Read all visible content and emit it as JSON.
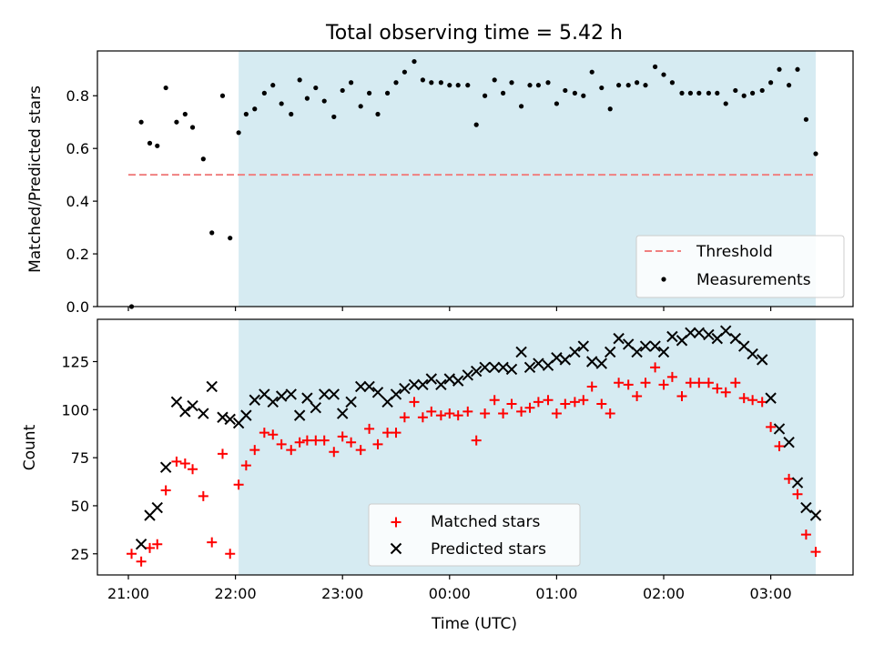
{
  "chart_data": [
    {
      "type": "scatter",
      "title": "Total observing time = 5.42 h",
      "xlabel": "",
      "ylabel": "Matched/Predicted stars",
      "ylim": [
        0,
        0.97
      ],
      "yticks": [
        "0.0",
        "0.2",
        "0.4",
        "0.6",
        "0.8"
      ],
      "threshold": {
        "name": "Threshold",
        "value": 0.5,
        "x_start": 0.0,
        "x_end": 6.42,
        "color": "#f08080",
        "style": "dashed"
      },
      "legend_position": "lower right",
      "series": [
        {
          "name": "Measurements",
          "color": "#000000",
          "x": [
            0.03,
            0.12,
            0.2,
            0.27,
            0.35,
            0.45,
            0.53,
            0.6,
            0.7,
            0.78,
            0.88,
            0.95,
            1.03,
            1.1,
            1.18,
            1.27,
            1.35,
            1.43,
            1.52,
            1.6,
            1.67,
            1.75,
            1.83,
            1.92,
            2.0,
            2.08,
            2.17,
            2.25,
            2.33,
            2.42,
            2.5,
            2.58,
            2.67,
            2.75,
            2.83,
            2.92,
            3.0,
            3.08,
            3.17,
            3.25,
            3.33,
            3.42,
            3.5,
            3.58,
            3.67,
            3.75,
            3.83,
            3.92,
            4.0,
            4.08,
            4.17,
            4.25,
            4.33,
            4.42,
            4.5,
            4.58,
            4.67,
            4.75,
            4.83,
            4.92,
            5.0,
            5.08,
            5.17,
            5.25,
            5.33,
            5.42,
            5.5,
            5.58,
            5.67,
            5.75,
            5.83,
            5.92,
            6.0,
            6.08,
            6.17,
            6.25,
            6.33,
            6.42
          ],
          "y": [
            0.0,
            0.7,
            0.62,
            0.61,
            0.83,
            0.7,
            0.73,
            0.68,
            0.56,
            0.28,
            0.8,
            0.26,
            0.66,
            0.73,
            0.75,
            0.81,
            0.84,
            0.77,
            0.73,
            0.86,
            0.79,
            0.83,
            0.78,
            0.72,
            0.82,
            0.85,
            0.76,
            0.81,
            0.73,
            0.81,
            0.85,
            0.89,
            0.93,
            0.86,
            0.85,
            0.85,
            0.84,
            0.84,
            0.84,
            0.69,
            0.8,
            0.86,
            0.81,
            0.85,
            0.76,
            0.84,
            0.84,
            0.85,
            0.77,
            0.82,
            0.81,
            0.8,
            0.89,
            0.83,
            0.75,
            0.84,
            0.84,
            0.85,
            0.84,
            0.91,
            0.88,
            0.85,
            0.81,
            0.81,
            0.81,
            0.81,
            0.81,
            0.77,
            0.82,
            0.8,
            0.81,
            0.82,
            0.85,
            0.9,
            0.84,
            0.9,
            0.71,
            0.58
          ]
        }
      ]
    },
    {
      "type": "scatter",
      "title": "",
      "xlabel": "Time (UTC)",
      "ylabel": "Count",
      "ylim": [
        14,
        147
      ],
      "yticks": [
        "25",
        "50",
        "75",
        "100",
        "125"
      ],
      "xticks": [
        "21:00",
        "22:00",
        "23:00",
        "00:00",
        "01:00",
        "02:00",
        "03:00"
      ],
      "legend_position": "lower center",
      "series": [
        {
          "name": "Matched stars",
          "marker": "plus",
          "color": "#ff0000",
          "x": [
            0.03,
            0.12,
            0.2,
            0.27,
            0.35,
            0.45,
            0.53,
            0.6,
            0.7,
            0.78,
            0.88,
            0.95,
            1.03,
            1.1,
            1.18,
            1.27,
            1.35,
            1.43,
            1.52,
            1.6,
            1.67,
            1.75,
            1.83,
            1.92,
            2.0,
            2.08,
            2.17,
            2.25,
            2.33,
            2.42,
            2.5,
            2.58,
            2.67,
            2.75,
            2.83,
            2.92,
            3.0,
            3.08,
            3.17,
            3.25,
            3.33,
            3.42,
            3.5,
            3.58,
            3.67,
            3.75,
            3.83,
            3.92,
            4.0,
            4.08,
            4.17,
            4.25,
            4.33,
            4.42,
            4.5,
            4.58,
            4.67,
            4.75,
            4.83,
            4.92,
            5.0,
            5.08,
            5.17,
            5.25,
            5.33,
            5.42,
            5.5,
            5.58,
            5.67,
            5.75,
            5.83,
            5.92,
            6.0,
            6.08,
            6.17,
            6.25,
            6.33,
            6.42
          ],
          "y": [
            25,
            21,
            28,
            30,
            58,
            73,
            72,
            69,
            55,
            31,
            77,
            25,
            61,
            71,
            79,
            88,
            87,
            82,
            79,
            83,
            84,
            84,
            84,
            78,
            86,
            83,
            79,
            90,
            82,
            88,
            88,
            96,
            104,
            96,
            99,
            97,
            98,
            97,
            99,
            84,
            98,
            105,
            98,
            103,
            99,
            101,
            104,
            105,
            98,
            103,
            104,
            105,
            112,
            103,
            98,
            114,
            113,
            107,
            114,
            122,
            113,
            117,
            107,
            114,
            114,
            114,
            111,
            109,
            114,
            106,
            105,
            104,
            91,
            81,
            64,
            56,
            35,
            26
          ]
        },
        {
          "name": "Predicted stars",
          "marker": "x",
          "color": "#000000",
          "x": [
            0.12,
            0.2,
            0.27,
            0.35,
            0.45,
            0.53,
            0.6,
            0.7,
            0.78,
            0.88,
            0.95,
            1.03,
            1.1,
            1.18,
            1.27,
            1.35,
            1.43,
            1.52,
            1.6,
            1.67,
            1.75,
            1.83,
            1.92,
            2.0,
            2.08,
            2.17,
            2.25,
            2.33,
            2.42,
            2.5,
            2.58,
            2.67,
            2.75,
            2.83,
            2.92,
            3.0,
            3.08,
            3.17,
            3.25,
            3.33,
            3.42,
            3.5,
            3.58,
            3.67,
            3.75,
            3.83,
            3.92,
            4.0,
            4.08,
            4.17,
            4.25,
            4.33,
            4.42,
            4.5,
            4.58,
            4.67,
            4.75,
            4.83,
            4.92,
            5.0,
            5.08,
            5.17,
            5.25,
            5.33,
            5.42,
            5.5,
            5.58,
            5.67,
            5.75,
            5.83,
            5.92,
            6.0,
            6.08,
            6.17,
            6.25,
            6.33,
            6.42
          ],
          "y": [
            30,
            45,
            49,
            70,
            104,
            99,
            102,
            98,
            112,
            96,
            95,
            93,
            97,
            105,
            108,
            104,
            107,
            108,
            97,
            106,
            101,
            108,
            108,
            98,
            104,
            112,
            112,
            109,
            104,
            108,
            111,
            113,
            113,
            116,
            113,
            116,
            115,
            118,
            120,
            122,
            122,
            122,
            121,
            130,
            122,
            124,
            123,
            127,
            126,
            130,
            133,
            125,
            124,
            130,
            137,
            134,
            130,
            133,
            133,
            130,
            138,
            136,
            140,
            140,
            139,
            137,
            141,
            137,
            133,
            129,
            126,
            106,
            90,
            83,
            62,
            49,
            45
          ]
        }
      ]
    }
  ],
  "shaded_region": {
    "x_start": 1.03,
    "x_end": 6.42,
    "color": "#add8e6"
  }
}
